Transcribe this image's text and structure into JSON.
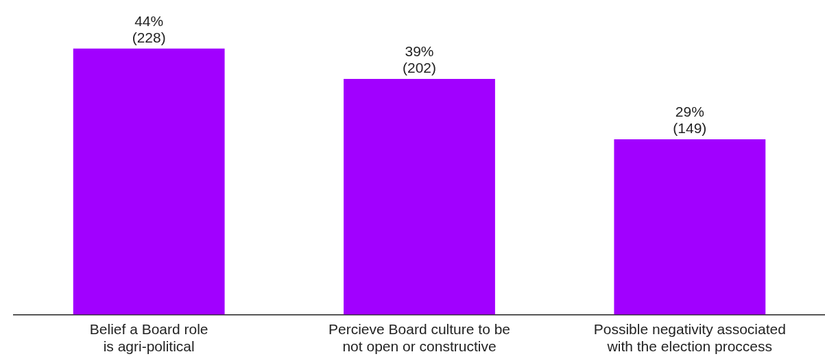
{
  "chart_data": {
    "type": "bar",
    "categories": [
      "Belief a Board role\nis agri-political",
      "Percieve Board culture to be\nnot open or constructive",
      "Possible negativity associated\nwith the election proccess"
    ],
    "values": [
      44,
      39,
      29
    ],
    "color": "#a100ff",
    "value_labels": [
      "44%\n(228)",
      "39%\n(202)",
      "29%\n(149)"
    ],
    "grid": false,
    "legend": false
  }
}
